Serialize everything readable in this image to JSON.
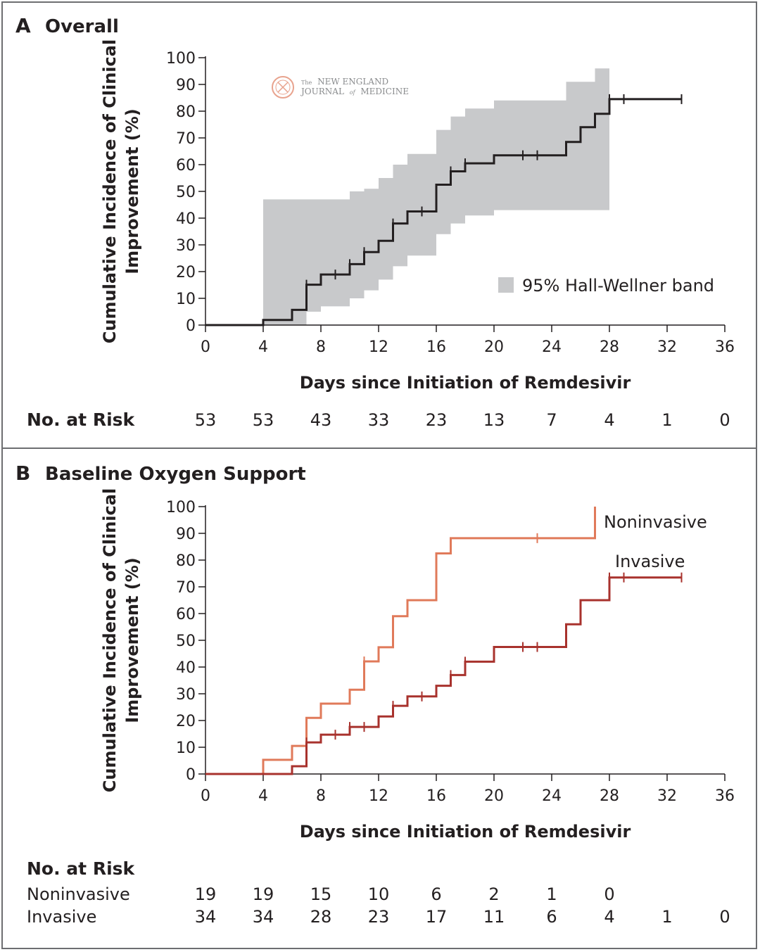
{
  "panels": [
    {
      "letter": "A",
      "title": "Overall",
      "watermark": {
        "line1_small": "The",
        "line1": "NEW ENGLAND",
        "line2": "JOURNAL",
        "line2_small": "of",
        "line2b": "MEDICINE"
      },
      "risk": {
        "header": "No. at Risk",
        "rows": [
          {
            "label": "",
            "values": [
              "53",
              "53",
              "43",
              "33",
              "23",
              "13",
              "7",
              "4",
              "1",
              "0"
            ]
          }
        ]
      }
    },
    {
      "letter": "B",
      "title": "Baseline Oxygen Support",
      "risk": {
        "header": "No. at Risk",
        "rows": [
          {
            "label": "Noninvasive",
            "values": [
              "19",
              "19",
              "15",
              "10",
              "6",
              "2",
              "1",
              "0",
              "",
              ""
            ]
          },
          {
            "label": "Invasive",
            "values": [
              "34",
              "34",
              "28",
              "23",
              "17",
              "11",
              "6",
              "4",
              "1",
              "0"
            ]
          }
        ]
      }
    }
  ],
  "chart_data": [
    {
      "type": "line",
      "title": "Overall",
      "xlabel": "Days since Initiation of Remdesivir",
      "ylabel_line1": "Cumulative Incidence of Clinical",
      "ylabel_line2": "Improvement (%)",
      "xlim": [
        0,
        36
      ],
      "ylim": [
        0,
        100
      ],
      "xticks": [
        0,
        4,
        8,
        12,
        16,
        20,
        24,
        28,
        32,
        36
      ],
      "yticks": [
        0,
        10,
        20,
        30,
        40,
        50,
        60,
        70,
        80,
        90,
        100
      ],
      "legend": {
        "label": "95% Hall-Wellner band",
        "color": "#c8c9cb",
        "position": "bottom-right"
      },
      "band": {
        "x": [
          4,
          6,
          7,
          8,
          10,
          11,
          12,
          13,
          14,
          16,
          17,
          18,
          20,
          25,
          27,
          28
        ],
        "upper": [
          47,
          47,
          47,
          47,
          50,
          51,
          55,
          60,
          64,
          73,
          78,
          81,
          84,
          91,
          96,
          99
        ],
        "lower": [
          0,
          0,
          5,
          7,
          10,
          13,
          17,
          22,
          26,
          34,
          38,
          41,
          43,
          43,
          43,
          43
        ]
      },
      "series": [
        {
          "name": "Overall",
          "color": "#231f20",
          "steps": [
            [
              0,
              0
            ],
            [
              4,
              1.9
            ],
            [
              6,
              5.7
            ],
            [
              7,
              15.1
            ],
            [
              8,
              18.9
            ],
            [
              10,
              22.8
            ],
            [
              11,
              27.3
            ],
            [
              12,
              31.5
            ],
            [
              13,
              38
            ],
            [
              14,
              42.5
            ],
            [
              16,
              52.5
            ],
            [
              17,
              57.5
            ],
            [
              18,
              60.5
            ],
            [
              20,
              63.5
            ],
            [
              25,
              68.5
            ],
            [
              26,
              74
            ],
            [
              27,
              79
            ],
            [
              28,
              84.5
            ],
            [
              33,
              84.5
            ]
          ],
          "censor": [
            7,
            9,
            10,
            11,
            13,
            15,
            17,
            18,
            22,
            23,
            28,
            29,
            33
          ]
        }
      ]
    },
    {
      "type": "line",
      "title": "Baseline Oxygen Support",
      "xlabel": "Days since Initiation of Remdesivir",
      "ylabel_line1": "Cumulative Incidence of Clinical",
      "ylabel_line2": "Improvement (%)",
      "xlim": [
        0,
        36
      ],
      "ylim": [
        0,
        100
      ],
      "xticks": [
        0,
        4,
        8,
        12,
        16,
        20,
        24,
        28,
        32,
        36
      ],
      "yticks": [
        0,
        10,
        20,
        30,
        40,
        50,
        60,
        70,
        80,
        90,
        100
      ],
      "series": [
        {
          "name": "Noninvasive",
          "color": "#e07a5a",
          "steps": [
            [
              0,
              0
            ],
            [
              4,
              5.3
            ],
            [
              6,
              10.5
            ],
            [
              7,
              21
            ],
            [
              8,
              26.3
            ],
            [
              10,
              31.5
            ],
            [
              11,
              42.1
            ],
            [
              12,
              47.4
            ],
            [
              13,
              59
            ],
            [
              14,
              65
            ],
            [
              16,
              82.5
            ],
            [
              17,
              88.2
            ],
            [
              27,
              88.2
            ],
            [
              27,
              100
            ]
          ],
          "censor": [
            11,
            23
          ]
        },
        {
          "name": "Invasive",
          "color": "#a8322d",
          "steps": [
            [
              0,
              0
            ],
            [
              6,
              2.9
            ],
            [
              7,
              11.8
            ],
            [
              8,
              14.7
            ],
            [
              10,
              17.6
            ],
            [
              12,
              21.5
            ],
            [
              13,
              25.5
            ],
            [
              14,
              29
            ],
            [
              16,
              33
            ],
            [
              17,
              37
            ],
            [
              18,
              42
            ],
            [
              20,
              47.5
            ],
            [
              25,
              56
            ],
            [
              26,
              65
            ],
            [
              28,
              73.5
            ],
            [
              33,
              73.5
            ]
          ],
          "censor": [
            7,
            9,
            10,
            11,
            13,
            15,
            17,
            18,
            22,
            23,
            28,
            29,
            33
          ]
        }
      ]
    }
  ]
}
